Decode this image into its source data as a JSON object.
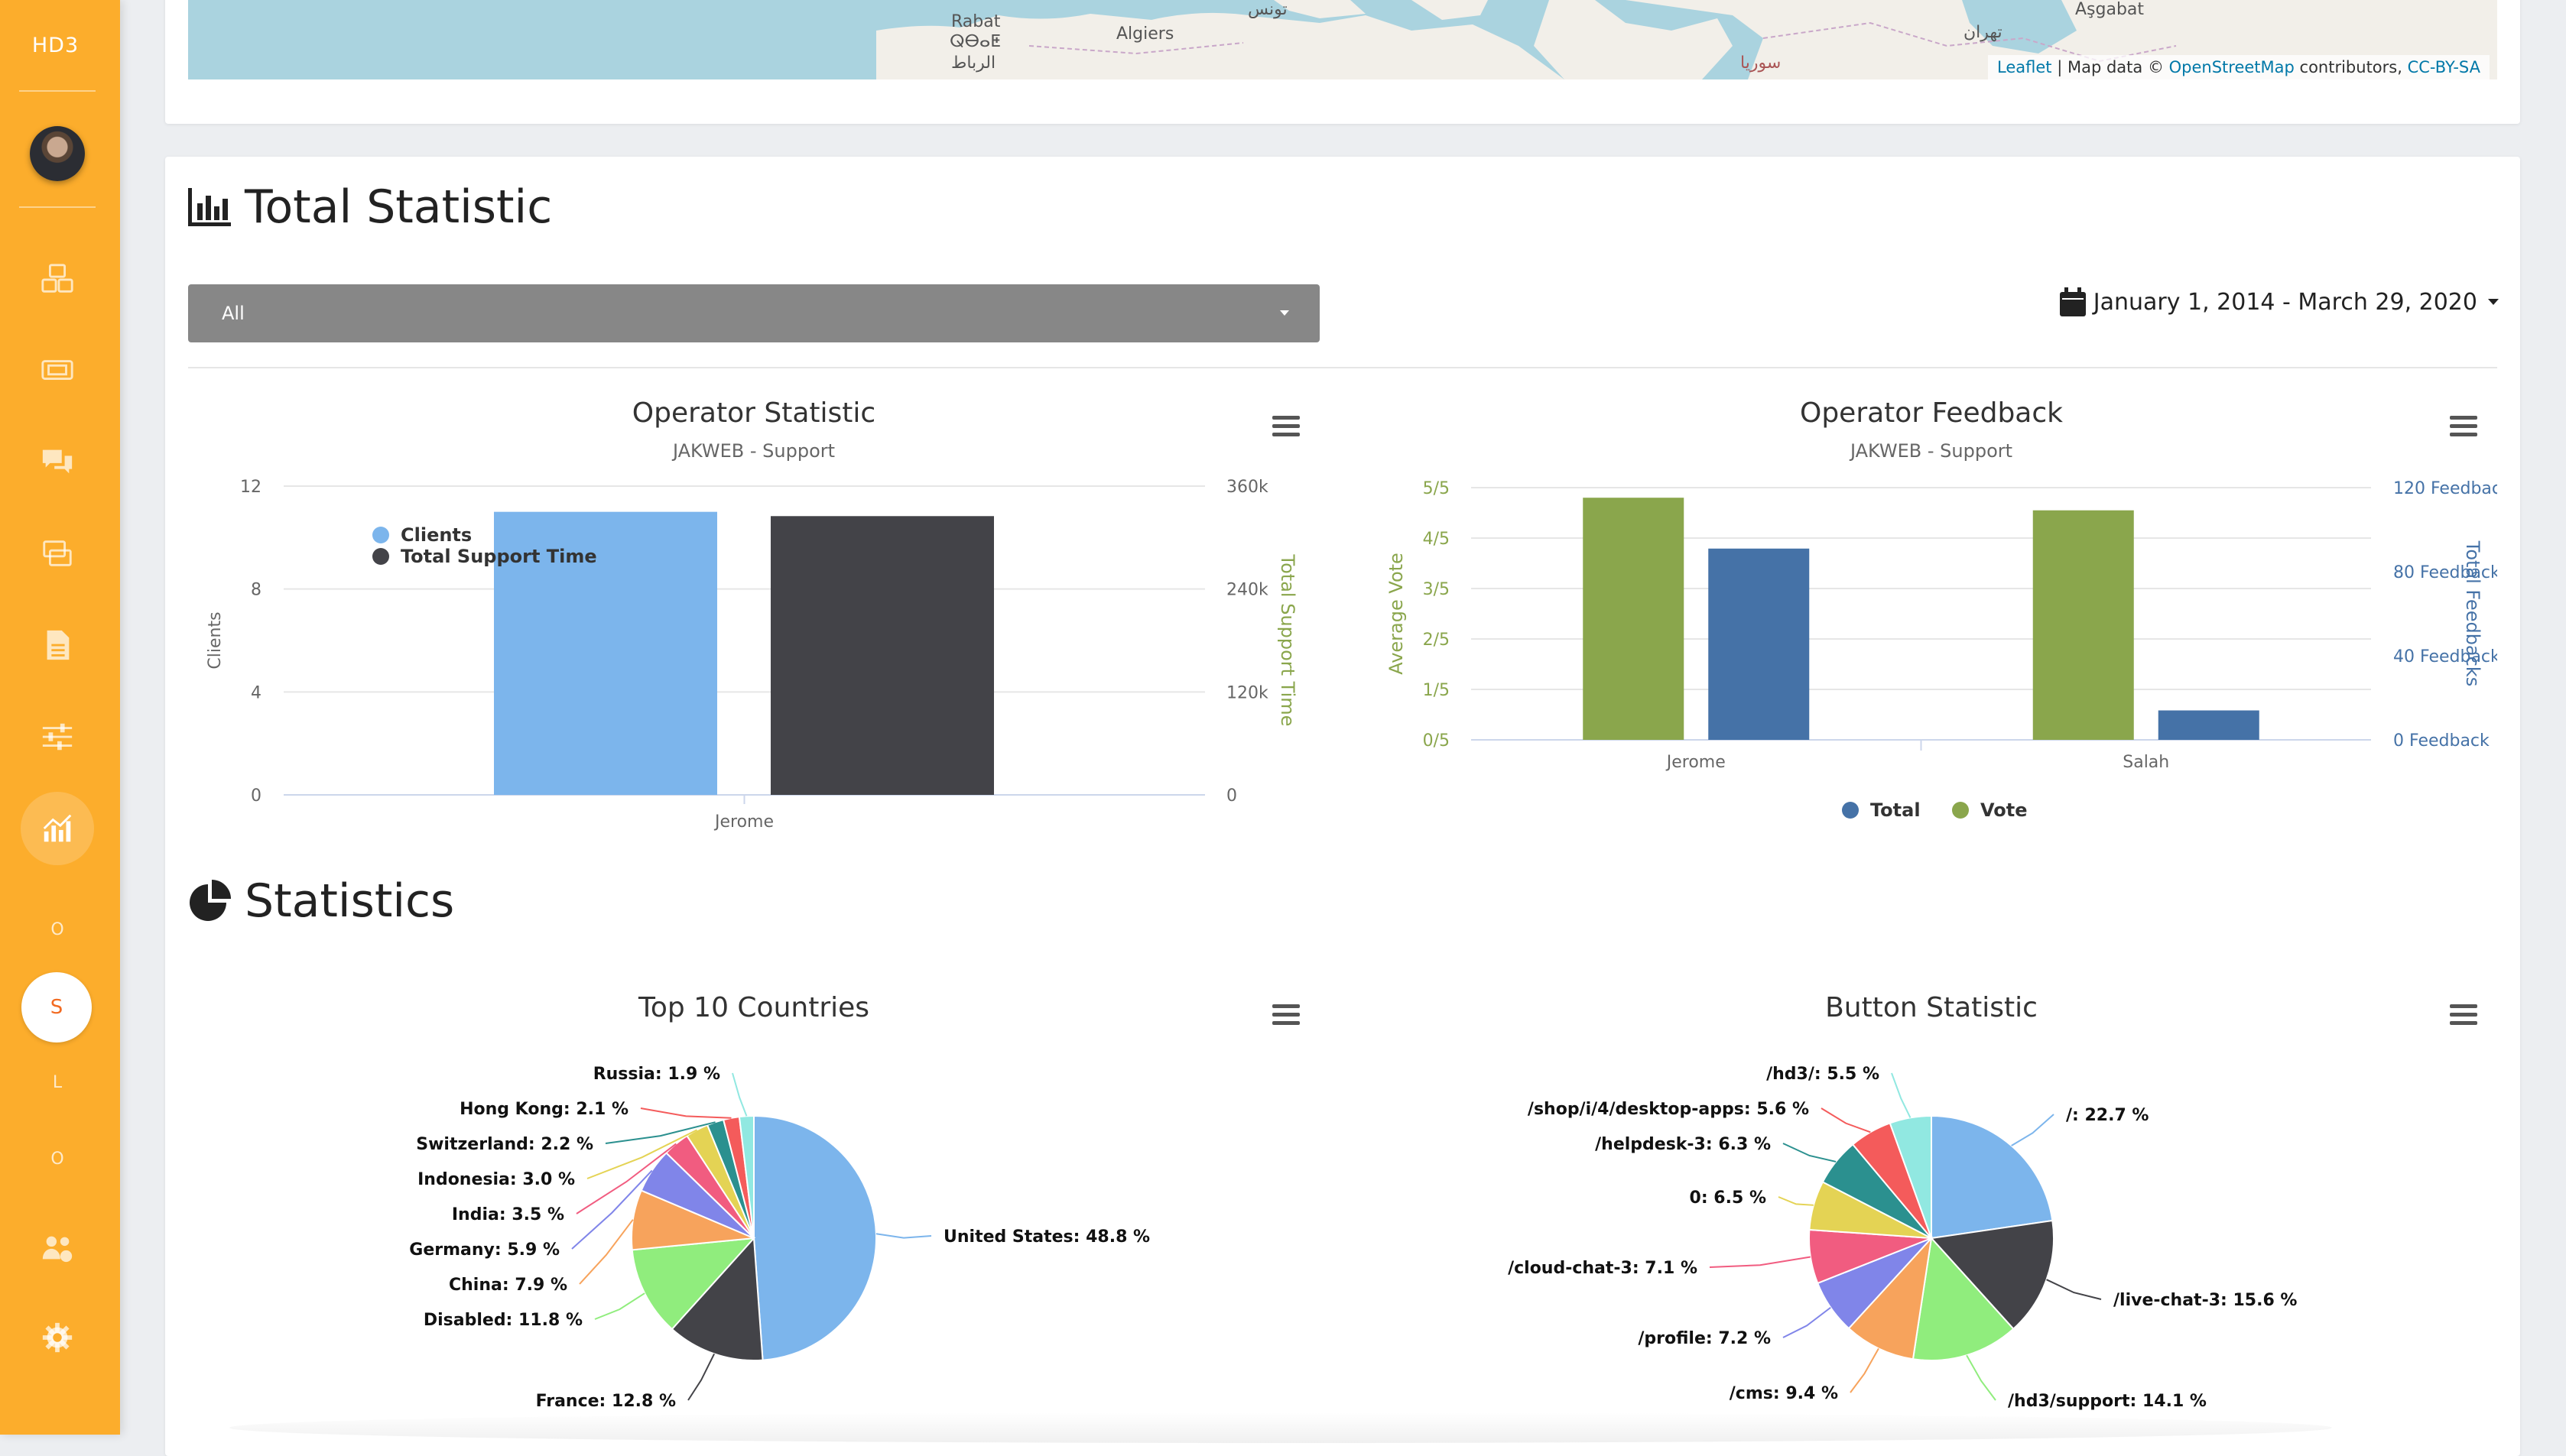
{
  "app": {
    "brand": "HD3"
  },
  "sidebar": {
    "letters": [
      "O",
      "S",
      "L",
      "O"
    ],
    "active_letter": "S"
  },
  "map": {
    "labels": [
      "Rabat",
      "ⵕⴱⴰⵟ",
      "الرباط",
      "Algiers",
      "تونس",
      "Aşgabat",
      "تهران",
      "سوريا"
    ],
    "attribution": {
      "leaflet": "Leaflet",
      "separator": " | Map data © ",
      "osm": "OpenStreetMap",
      "contributors": " contributors, ",
      "license": "CC-BY-SA"
    }
  },
  "total_statistic": {
    "title": "Total Statistic",
    "filter_value": "All",
    "date_range": "January 1, 2014 - March 29, 2020"
  },
  "statistics": {
    "title": "Statistics"
  },
  "colors": {
    "sidebar": "#fcad2c",
    "blue": "#7cb5ec",
    "dark": "#434348",
    "green": "#90ed7d",
    "orange": "#f7a35c",
    "purple": "#8085e9",
    "pink": "#f15c80",
    "yellow": "#e4d354",
    "teal": "#2b908f",
    "red": "#f45b5b",
    "cyan": "#91e8e1",
    "olive": "#8aa64c",
    "navy": "#4572a7"
  },
  "chart_data": [
    {
      "type": "bar",
      "title": "Operator Statistic",
      "subtitle": "JAKWEB - Support",
      "categories": [
        "Jerome"
      ],
      "ylabel": "Clients",
      "y2label": "Total Support Time",
      "ylim": [
        0,
        12
      ],
      "y2lim": [
        0,
        360000
      ],
      "yticks": [
        "0",
        "4",
        "8",
        "12"
      ],
      "y2ticks": [
        "0",
        "120k",
        "240k",
        "360k"
      ],
      "legend_position": "top-left",
      "series": [
        {
          "name": "Clients",
          "axis": "left",
          "values": [
            11
          ]
        },
        {
          "name": "Total Support Time",
          "axis": "right",
          "values": [
            325000
          ]
        }
      ]
    },
    {
      "type": "bar",
      "title": "Operator Feedback",
      "subtitle": "JAKWEB - Support",
      "categories": [
        "Jerome",
        "Salah"
      ],
      "ylabel": "Average Vote",
      "y2label": "Total Feedbacks",
      "ylim": [
        0,
        5
      ],
      "y2lim": [
        0,
        120
      ],
      "yticks": [
        "0/5",
        "1/5",
        "2/5",
        "3/5",
        "4/5",
        "5/5"
      ],
      "y2ticks": [
        "0 Feedback",
        "40 Feedback",
        "80 Feedback",
        "120 Feedback"
      ],
      "legend_position": "bottom",
      "series": [
        {
          "name": "Vote",
          "axis": "left",
          "values": [
            4.8,
            4.55
          ]
        },
        {
          "name": "Total",
          "axis": "right",
          "values": [
            91,
            14
          ]
        }
      ]
    },
    {
      "type": "pie",
      "title": "Top 10 Countries",
      "slices": [
        {
          "label": "United States",
          "value": 48.8
        },
        {
          "label": "France",
          "value": 12.8
        },
        {
          "label": "Disabled",
          "value": 11.8
        },
        {
          "label": "China",
          "value": 7.9
        },
        {
          "label": "Germany",
          "value": 5.9
        },
        {
          "label": "India",
          "value": 3.5
        },
        {
          "label": "Indonesia",
          "value": 3.0
        },
        {
          "label": "Switzerland",
          "value": 2.2
        },
        {
          "label": "Hong Kong",
          "value": 2.1
        },
        {
          "label": "Russia",
          "value": 1.9
        }
      ]
    },
    {
      "type": "pie",
      "title": "Button Statistic",
      "slices": [
        {
          "label": "/",
          "value": 22.7
        },
        {
          "label": "/live-chat-3",
          "value": 15.6
        },
        {
          "label": "/hd3/support",
          "value": 14.1
        },
        {
          "label": "/cms",
          "value": 9.4
        },
        {
          "label": "/profile",
          "value": 7.2
        },
        {
          "label": "/cloud-chat-3",
          "value": 7.1
        },
        {
          "label": "0",
          "value": 6.5
        },
        {
          "label": "/helpdesk-3",
          "value": 6.3
        },
        {
          "label": "/shop/i/4/desktop-apps",
          "value": 5.6
        },
        {
          "label": "/hd3/",
          "value": 5.5
        }
      ]
    }
  ]
}
